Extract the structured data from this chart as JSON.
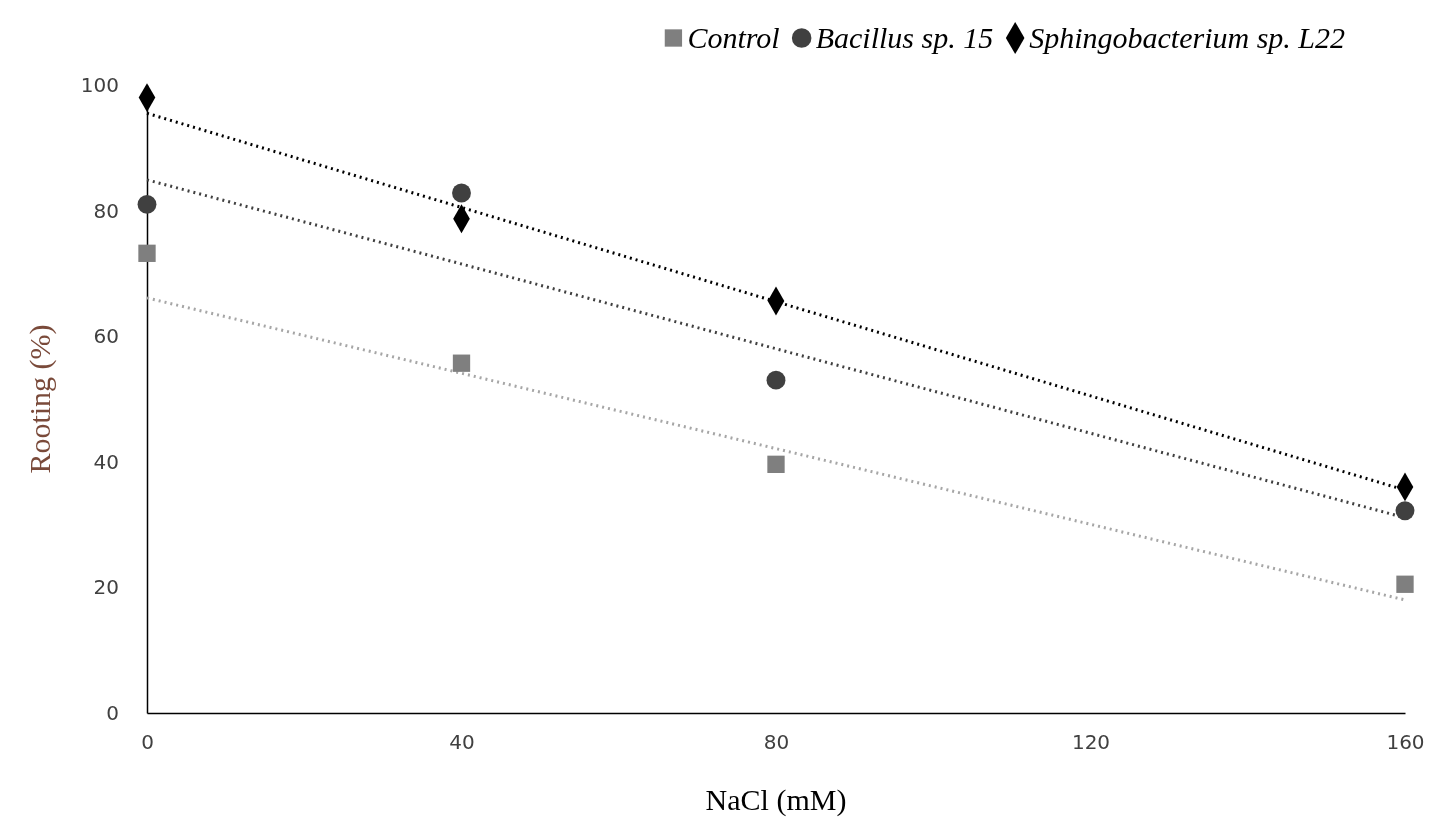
{
  "chart_data": {
    "type": "scatter",
    "xlabel": "NaCl (mM)",
    "ylabel": "Rooting  (%)",
    "x": [
      0,
      40,
      80,
      160
    ],
    "xlim": [
      0,
      160
    ],
    "xticks": [
      0,
      40,
      80,
      120,
      160
    ],
    "ylim": [
      0,
      100
    ],
    "yticks": [
      0,
      20,
      40,
      60,
      80,
      100
    ],
    "legend": "top right",
    "grid": false,
    "series": [
      {
        "name": "Control",
        "color": "#7f7f7f",
        "marker": "square",
        "values": [
          73.2,
          55.7,
          39.6,
          20.5
        ]
      },
      {
        "name": "Bacillus sp. 15",
        "color": "#404040",
        "marker": "circle",
        "values": [
          81,
          82.8,
          53,
          32.2
        ]
      },
      {
        "name": "Sphingobacterium sp. L22",
        "color": "#000000",
        "marker": "diamond",
        "values": [
          98,
          78.7,
          65.6,
          36
        ]
      },
      {
        "type": "line",
        "color": "#a6a6a6",
        "line_style": "dotted",
        "values": [
          66.1,
          54.1,
          42.1,
          18
        ]
      },
      {
        "type": "line",
        "color": "#404040",
        "line_style": "dotted",
        "values": [
          84.9,
          71.5,
          58,
          31.1
        ]
      },
      {
        "type": "line",
        "color": "#000000",
        "line_style": "dotted",
        "values": [
          95.5,
          80.5,
          65.5,
          35.5
        ]
      }
    ]
  }
}
